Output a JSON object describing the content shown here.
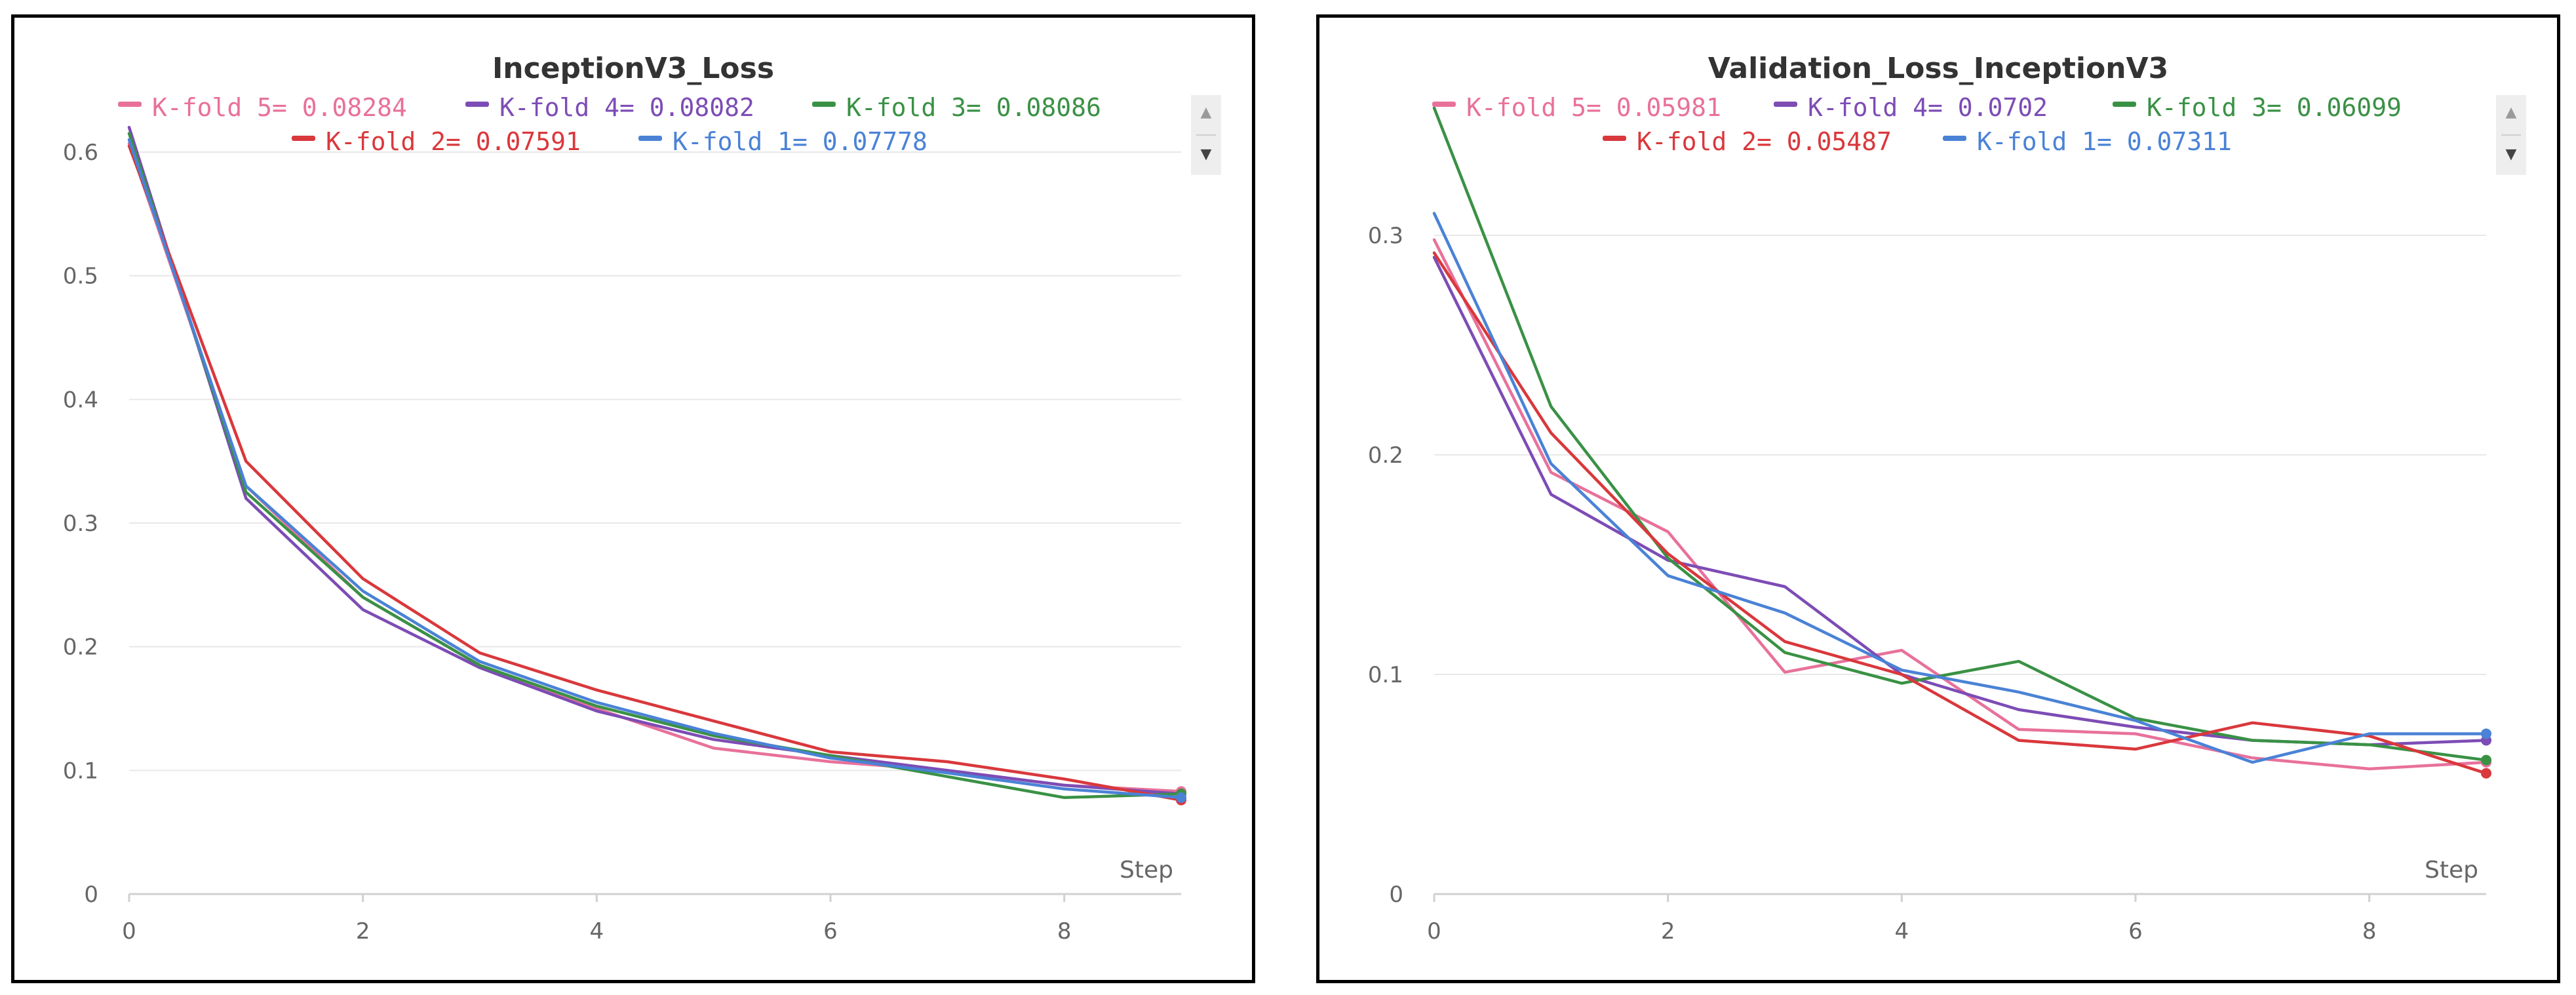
{
  "colors": {
    "kfold5": "#e8719b",
    "kfold4": "#7d4cb5",
    "kfold3": "#3a9145",
    "kfold2": "#d9383c",
    "kfold1": "#4a82d6",
    "grid": "#e8e8e8",
    "axis": "#d0d0d0",
    "tick_text": "#666666",
    "title_text": "#333333"
  },
  "chart_data": [
    {
      "type": "line",
      "title": "InceptionV3_Loss",
      "xlabel": "Step",
      "ylabel": "",
      "xlim": [
        0,
        9
      ],
      "ylim": [
        0,
        0.65
      ],
      "xticks": [
        0,
        2,
        4,
        6,
        8
      ],
      "yticks": [
        0,
        0.1,
        0.2,
        0.3,
        0.4,
        0.5,
        0.6
      ],
      "ytick_labels": [
        "0",
        "0.1",
        "0.2",
        "0.3",
        "0.4",
        "0.5",
        "0.6"
      ],
      "x": [
        0,
        1,
        2,
        3,
        4,
        5,
        6,
        7,
        8,
        9
      ],
      "grid": true,
      "legend_position": "top",
      "series": [
        {
          "name": "K-fold 5",
          "legend": "K-fold 5= 0.08284",
          "color_key": "kfold5",
          "values": [
            0.607,
            0.33,
            0.24,
            0.185,
            0.15,
            0.118,
            0.107,
            0.1,
            0.088,
            0.083
          ]
        },
        {
          "name": "K-fold 4",
          "legend": "K-fold 4= 0.08082",
          "color_key": "kfold4",
          "values": [
            0.62,
            0.32,
            0.23,
            0.183,
            0.148,
            0.125,
            0.112,
            0.1,
            0.088,
            0.081
          ]
        },
        {
          "name": "K-fold 3",
          "legend": "K-fold 3= 0.08086",
          "color_key": "kfold3",
          "values": [
            0.615,
            0.325,
            0.24,
            0.185,
            0.152,
            0.128,
            0.112,
            0.095,
            0.078,
            0.081
          ]
        },
        {
          "name": "K-fold 2",
          "legend": "K-fold 2= 0.07591",
          "color_key": "kfold2",
          "values": [
            0.605,
            0.35,
            0.255,
            0.195,
            0.165,
            0.14,
            0.115,
            0.107,
            0.093,
            0.076
          ]
        },
        {
          "name": "K-fold 1",
          "legend": "K-fold 1= 0.07778",
          "color_key": "kfold1",
          "values": [
            0.61,
            0.33,
            0.245,
            0.188,
            0.155,
            0.13,
            0.11,
            0.098,
            0.085,
            0.078
          ]
        }
      ]
    },
    {
      "type": "line",
      "title": "Validation_Loss_InceptionV3",
      "xlabel": "Step",
      "ylabel": "",
      "xlim": [
        0,
        9
      ],
      "ylim": [
        0,
        0.36
      ],
      "xticks": [
        0,
        2,
        4,
        6,
        8
      ],
      "yticks": [
        0,
        0.1,
        0.2,
        0.3
      ],
      "ytick_labels": [
        "0",
        "0.1",
        "0.2",
        "0.3"
      ],
      "x": [
        0,
        1,
        2,
        3,
        4,
        5,
        6,
        7,
        8,
        9
      ],
      "grid": true,
      "legend_position": "top",
      "series": [
        {
          "name": "K-fold 5",
          "legend": "K-fold 5= 0.05981",
          "color_key": "kfold5",
          "values": [
            0.298,
            0.192,
            0.165,
            0.101,
            0.111,
            0.075,
            0.073,
            0.062,
            0.057,
            0.06
          ]
        },
        {
          "name": "K-fold 4",
          "legend": "K-fold 4= 0.0702",
          "color_key": "kfold4",
          "values": [
            0.29,
            0.182,
            0.152,
            0.14,
            0.1,
            0.084,
            0.076,
            0.07,
            0.068,
            0.07
          ]
        },
        {
          "name": "K-fold 3",
          "legend": "K-fold 3= 0.06099",
          "color_key": "kfold3",
          "values": [
            0.358,
            0.222,
            0.153,
            0.11,
            0.096,
            0.106,
            0.08,
            0.07,
            0.068,
            0.061
          ]
        },
        {
          "name": "K-fold 2",
          "legend": "K-fold 2= 0.05487",
          "color_key": "kfold2",
          "values": [
            0.292,
            0.21,
            0.155,
            0.115,
            0.1,
            0.07,
            0.066,
            0.078,
            0.072,
            0.055
          ]
        },
        {
          "name": "K-fold 1",
          "legend": "K-fold 1= 0.07311",
          "color_key": "kfold1",
          "values": [
            0.31,
            0.196,
            0.145,
            0.128,
            0.102,
            0.092,
            0.079,
            0.06,
            0.073,
            0.073
          ]
        }
      ]
    }
  ],
  "scroll_controls": {
    "up_icon": "triangle-up-icon",
    "down_icon": "triangle-down-icon"
  }
}
